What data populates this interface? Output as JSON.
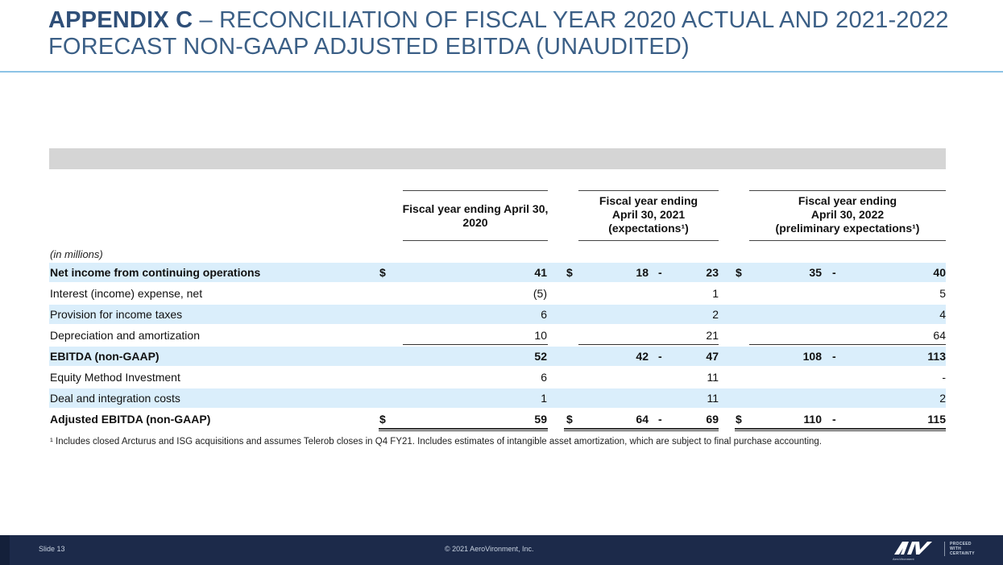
{
  "title": {
    "bold": "APPENDIX C",
    "rest": " – RECONCILIATION OF FISCAL YEAR 2020 ACTUAL AND 2021-2022 FORECAST NON-GAAP ADJUSTED EBITDA (UNAUDITED)"
  },
  "table": {
    "units_label": "(in millions)",
    "headers": {
      "fy2020": "Fiscal year ending April 30, 2020",
      "fy2021_line1": "Fiscal year ending",
      "fy2021_line2": "April 30, 2021",
      "fy2021_line3": "(expectations¹)",
      "fy2022_line1": "Fiscal year ending",
      "fy2022_line2": "April 30, 2022",
      "fy2022_line3": "(preliminary expectations¹)"
    },
    "rows": [
      {
        "label": "Net income from continuing operations",
        "cur1": "$",
        "fy20": "41",
        "cur2": "$",
        "fy21_low": "18",
        "dash21": "-",
        "fy21_high": "23",
        "cur3": "$",
        "fy22_low": "35",
        "dash22": "-",
        "fy22_high": "40"
      },
      {
        "label": "Interest (income) expense, net",
        "cur1": "",
        "fy20": "(5)",
        "cur2": "",
        "fy21_low": "",
        "dash21": "",
        "fy21_high": "1",
        "cur3": "",
        "fy22_low": "",
        "dash22": "",
        "fy22_high": "5"
      },
      {
        "label": "Provision for income taxes",
        "cur1": "",
        "fy20": "6",
        "cur2": "",
        "fy21_low": "",
        "dash21": "",
        "fy21_high": "2",
        "cur3": "",
        "fy22_low": "",
        "dash22": "",
        "fy22_high": "4"
      },
      {
        "label": "Depreciation and amortization",
        "cur1": "",
        "fy20": "10",
        "cur2": "",
        "fy21_low": "",
        "dash21": "",
        "fy21_high": "21",
        "cur3": "",
        "fy22_low": "",
        "dash22": "",
        "fy22_high": "64"
      },
      {
        "label": "EBITDA (non-GAAP)",
        "cur1": "",
        "fy20": "52",
        "cur2": "",
        "fy21_low": "42",
        "dash21": "-",
        "fy21_high": "47",
        "cur3": "",
        "fy22_low": "108",
        "dash22": "-",
        "fy22_high": "113"
      },
      {
        "label": "Equity Method Investment",
        "cur1": "",
        "fy20": "6",
        "cur2": "",
        "fy21_low": "",
        "dash21": "",
        "fy21_high": "11",
        "cur3": "",
        "fy22_low": "",
        "dash22": "",
        "fy22_high": "-"
      },
      {
        "label": "Deal and integration costs",
        "cur1": "",
        "fy20": "1",
        "cur2": "",
        "fy21_low": "",
        "dash21": "",
        "fy21_high": "11",
        "cur3": "",
        "fy22_low": "",
        "dash22": "",
        "fy22_high": "2"
      },
      {
        "label": "Adjusted EBITDA (non-GAAP)",
        "cur1": "$",
        "fy20": "59",
        "cur2": "$",
        "fy21_low": "64",
        "dash21": "-",
        "fy21_high": "69",
        "cur3": "$",
        "fy22_low": "110",
        "dash22": "-",
        "fy22_high": "115"
      }
    ]
  },
  "footnote": "¹ Includes closed Arcturus and ISG acquisitions and assumes Telerob closes in Q4 FY21. Includes estimates of intangible asset amortization, which are subject to final purchase accounting.",
  "footer": {
    "slide": "Slide 13",
    "copyright": "© 2021 AeroVironment, Inc.",
    "logo_text": "AeroVironment",
    "tagline_1": "PROCEED",
    "tagline_2": "WITH",
    "tagline_3": "CERTAINTY"
  },
  "colors": {
    "title": "#3b5f86",
    "row_shade": "#daeefb",
    "footer_bg": "#1c2a4a",
    "title_rule": "#8cc3e6"
  }
}
